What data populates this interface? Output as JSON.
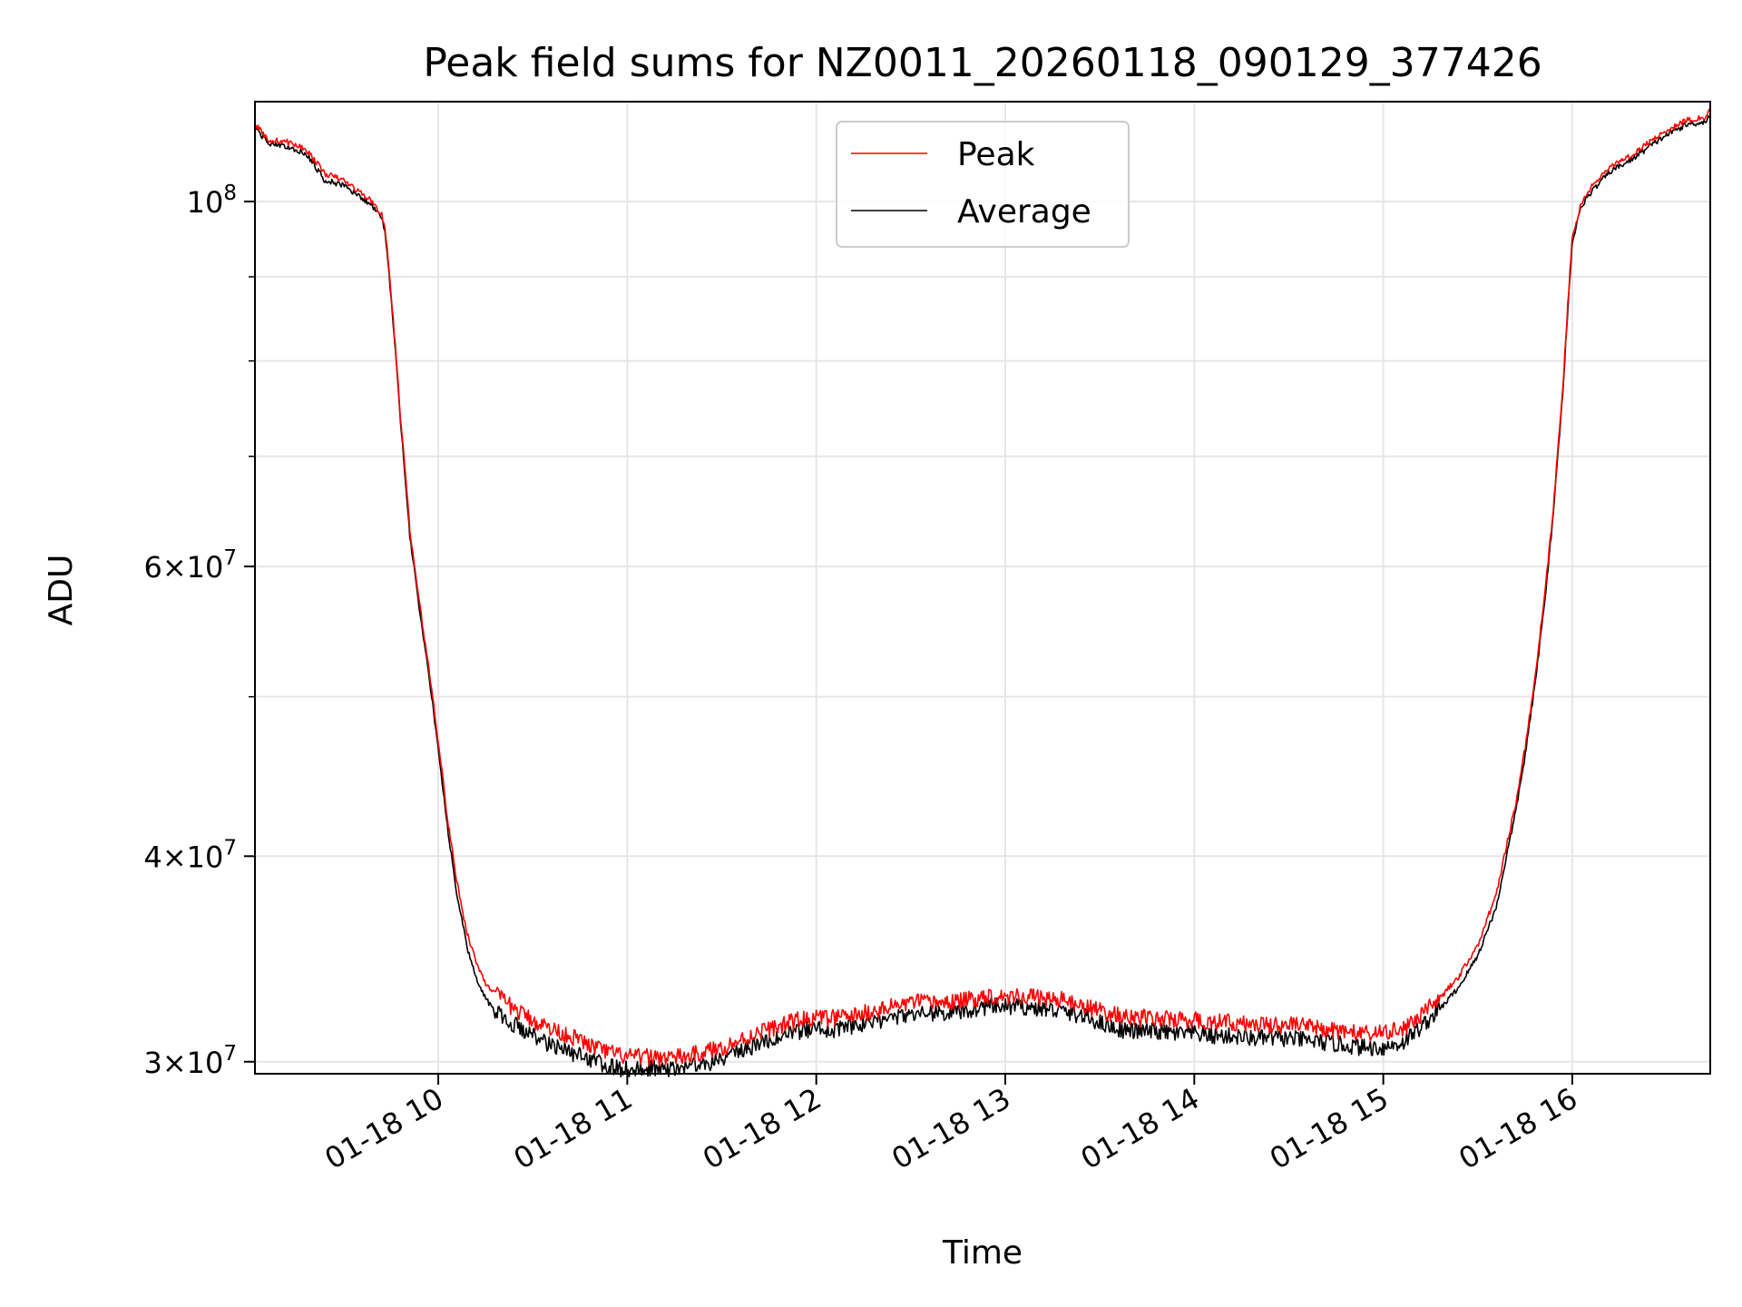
{
  "chart_data": {
    "type": "line",
    "title": "Peak field sums for NZ0011_20260118_090129_377426",
    "xlabel": "Time",
    "ylabel": "ADU",
    "yscale": "log",
    "ylim": [
      29500000,
      115000000
    ],
    "xlim": [
      9.03,
      16.73
    ],
    "grid": true,
    "legend_position": "top-center",
    "x_ticks": [
      {
        "value": 10,
        "label": "01-18 10"
      },
      {
        "value": 11,
        "label": "01-18 11"
      },
      {
        "value": 12,
        "label": "01-18 12"
      },
      {
        "value": 13,
        "label": "01-18 13"
      },
      {
        "value": 14,
        "label": "01-18 14"
      },
      {
        "value": 15,
        "label": "01-18 15"
      },
      {
        "value": 16,
        "label": "01-18 16"
      }
    ],
    "y_ticks": [
      {
        "value": 30000000,
        "mantissa": "3",
        "exponent": "7"
      },
      {
        "value": 40000000,
        "mantissa": "4",
        "exponent": "7"
      },
      {
        "value": 60000000,
        "mantissa": "6",
        "exponent": "7"
      },
      {
        "value": 100000000,
        "mantissa": "",
        "exponent": "8"
      }
    ],
    "y_minor_ticks": [
      50000000,
      70000000,
      80000000,
      90000000
    ],
    "colors": {
      "Peak": "#ff0000",
      "Average": "#000000"
    },
    "x": [
      9.03,
      9.1,
      9.2,
      9.3,
      9.4,
      9.5,
      9.55,
      9.6,
      9.65,
      9.7,
      9.72,
      9.75,
      9.8,
      9.85,
      9.9,
      9.95,
      10.0,
      10.05,
      10.1,
      10.15,
      10.2,
      10.25,
      10.3,
      10.4,
      10.5,
      10.6,
      10.7,
      10.8,
      10.9,
      11.0,
      11.1,
      11.2,
      11.3,
      11.4,
      11.5,
      11.6,
      11.7,
      11.8,
      11.9,
      12.0,
      12.1,
      12.2,
      12.3,
      12.4,
      12.5,
      12.6,
      12.7,
      12.8,
      12.9,
      13.0,
      13.1,
      13.2,
      13.3,
      13.4,
      13.5,
      13.6,
      13.7,
      13.8,
      13.9,
      14.0,
      14.1,
      14.2,
      14.3,
      14.4,
      14.5,
      14.6,
      14.7,
      14.8,
      14.9,
      15.0,
      15.1,
      15.2,
      15.3,
      15.4,
      15.5,
      15.6,
      15.7,
      15.75,
      15.8,
      15.85,
      15.9,
      15.95,
      16.0,
      16.05,
      16.1,
      16.2,
      16.3,
      16.4,
      16.5,
      16.6,
      16.7,
      16.73
    ],
    "series": [
      {
        "name": "Peak",
        "values": [
          111500000,
          109000000,
          108700000,
          107600000,
          104000000,
          103000000,
          102000000,
          101000000,
          100000000,
          98200000,
          96000000,
          88000000,
          74000000,
          63000000,
          57000000,
          52000000,
          47000000,
          42000000,
          38500000,
          36000000,
          34500000,
          33500000,
          33000000,
          32300000,
          31800000,
          31400000,
          31100000,
          30700000,
          30400000,
          30200000,
          30200000,
          30200000,
          30200000,
          30400000,
          30600000,
          30900000,
          31300000,
          31500000,
          31800000,
          31900000,
          31900000,
          32000000,
          32200000,
          32400000,
          32600000,
          32600000,
          32600000,
          32700000,
          32900000,
          32900000,
          32900000,
          32800000,
          32700000,
          32500000,
          32200000,
          32000000,
          31900000,
          31900000,
          31800000,
          31800000,
          31700000,
          31700000,
          31600000,
          31600000,
          31600000,
          31500000,
          31400000,
          31300000,
          31200000,
          31200000,
          31400000,
          32000000,
          32800000,
          33800000,
          35300000,
          38000000,
          43000000,
          46500000,
          51000000,
          57000000,
          65000000,
          77000000,
          95000000,
          100000000,
          102000000,
          105000000,
          106500000,
          108500000,
          110500000,
          112000000,
          112500000,
          113500000
        ]
      },
      {
        "name": "Average",
        "values": [
          111000000,
          108500000,
          108000000,
          107000000,
          103000000,
          102300000,
          101300000,
          100400000,
          99400000,
          97600000,
          95500000,
          87500000,
          73500000,
          62500000,
          56500000,
          51500000,
          46500000,
          41500000,
          37800000,
          35300000,
          33700000,
          32800000,
          32200000,
          31600000,
          31100000,
          30700000,
          30400000,
          30100000,
          29800000,
          29700000,
          29700000,
          29700000,
          29800000,
          29900000,
          30100000,
          30400000,
          30800000,
          31000000,
          31300000,
          31400000,
          31400000,
          31500000,
          31700000,
          31900000,
          32100000,
          32100000,
          32100000,
          32200000,
          32400000,
          32400000,
          32400000,
          32300000,
          32200000,
          32000000,
          31700000,
          31400000,
          31300000,
          31300000,
          31200000,
          31200000,
          31100000,
          31100000,
          31000000,
          31000000,
          31000000,
          30900000,
          30800000,
          30700000,
          30600000,
          30600000,
          30800000,
          31500000,
          32300000,
          33300000,
          34800000,
          37300000,
          42500000,
          46000000,
          50500000,
          56500000,
          64500000,
          76500000,
          94500000,
          99500000,
          101300000,
          104300000,
          105800000,
          107800000,
          109800000,
          111300000,
          111800000,
          112800000
        ]
      }
    ]
  }
}
